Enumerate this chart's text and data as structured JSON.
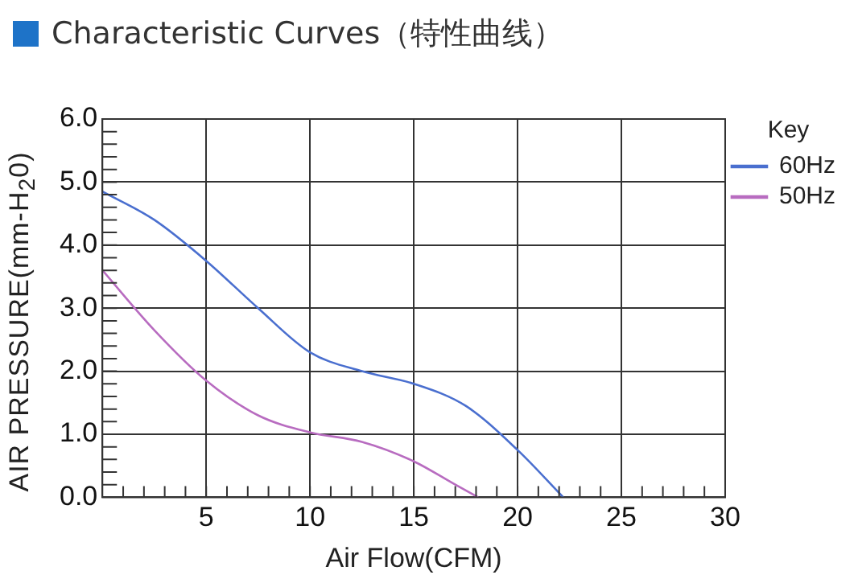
{
  "chart_data": {
    "type": "line",
    "title": "Characteristic Curves（特性曲线）",
    "xlabel": "Air Flow(CFM)",
    "ylabel": "AIR PRESSURE(mm-H$_{2}$0)",
    "legend_title": "Key",
    "legend": "right",
    "grid": true,
    "marker": "none",
    "line_style": "solid",
    "xlim": [
      0,
      30
    ],
    "ylim": [
      0,
      6
    ],
    "xticks": [
      {
        "value": 1,
        "label": null
      },
      {
        "value": 2,
        "label": null
      },
      {
        "value": 3,
        "label": null
      },
      {
        "value": 4,
        "label": null
      },
      5,
      {
        "value": 6,
        "label": null
      },
      {
        "value": 7,
        "label": null
      },
      {
        "value": 8,
        "label": null
      },
      {
        "value": 9,
        "label": null
      },
      10,
      {
        "value": 11,
        "label": null
      },
      {
        "value": 12,
        "label": null
      },
      {
        "value": 13,
        "label": null
      },
      {
        "value": 14,
        "label": null
      },
      15,
      {
        "value": 16,
        "label": null
      },
      {
        "value": 17,
        "label": null
      },
      {
        "value": 18,
        "label": null
      },
      {
        "value": 19,
        "label": null
      },
      20,
      {
        "value": 21,
        "label": null
      },
      {
        "value": 22,
        "label": null
      },
      {
        "value": 23,
        "label": null
      },
      {
        "value": 24,
        "label": null
      },
      25,
      {
        "value": 26,
        "label": null
      },
      {
        "value": 27,
        "label": null
      },
      {
        "value": 28,
        "label": null
      },
      {
        "value": 29,
        "label": null
      },
      30
    ],
    "yticks": [
      {
        "value": 0,
        "label": "0.0"
      },
      {
        "value": 0.2,
        "label": null
      },
      {
        "value": 0.4,
        "label": null
      },
      {
        "value": 0.6,
        "label": null
      },
      {
        "value": 0.8,
        "label": null
      },
      {
        "value": 1,
        "label": "1.0"
      },
      {
        "value": 1.2,
        "label": null
      },
      {
        "value": 1.4,
        "label": null
      },
      {
        "value": 1.6,
        "label": null
      },
      {
        "value": 1.8,
        "label": null
      },
      {
        "value": 2,
        "label": "2.0"
      },
      {
        "value": 2.2,
        "label": null
      },
      {
        "value": 2.4,
        "label": null
      },
      {
        "value": 2.6,
        "label": null
      },
      {
        "value": 2.8,
        "label": null
      },
      {
        "value": 3,
        "label": "3.0"
      },
      {
        "value": 3.2,
        "label": null
      },
      {
        "value": 3.4,
        "label": null
      },
      {
        "value": 3.6,
        "label": null
      },
      {
        "value": 3.8,
        "label": null
      },
      {
        "value": 4,
        "label": "4.0"
      },
      {
        "value": 4.2,
        "label": null
      },
      {
        "value": 4.4,
        "label": null
      },
      {
        "value": 4.6,
        "label": null
      },
      {
        "value": 4.8,
        "label": null
      },
      {
        "value": 5,
        "label": "5.0"
      },
      {
        "value": 5.2,
        "label": null
      },
      {
        "value": 5.4,
        "label": null
      },
      {
        "value": 5.6,
        "label": null
      },
      {
        "value": 5.8,
        "label": null
      },
      {
        "value": 6,
        "label": "6.0"
      }
    ],
    "series": [
      {
        "name": "60Hz",
        "color": "#4a6fcf",
        "x": [
          0,
          2.5,
          5,
          7.5,
          10,
          12.5,
          15,
          17.5,
          20,
          22.2
        ],
        "values": [
          4.85,
          4.4,
          3.75,
          3.0,
          2.3,
          2.0,
          1.8,
          1.45,
          0.75,
          0
        ]
      },
      {
        "name": "50Hz",
        "color": "#b86cc0",
        "x": [
          0,
          2.5,
          5,
          7.5,
          10,
          12.5,
          15,
          17,
          18.1
        ],
        "values": [
          3.6,
          2.65,
          1.85,
          1.3,
          1.03,
          0.88,
          0.57,
          0.2,
          0
        ]
      }
    ]
  }
}
